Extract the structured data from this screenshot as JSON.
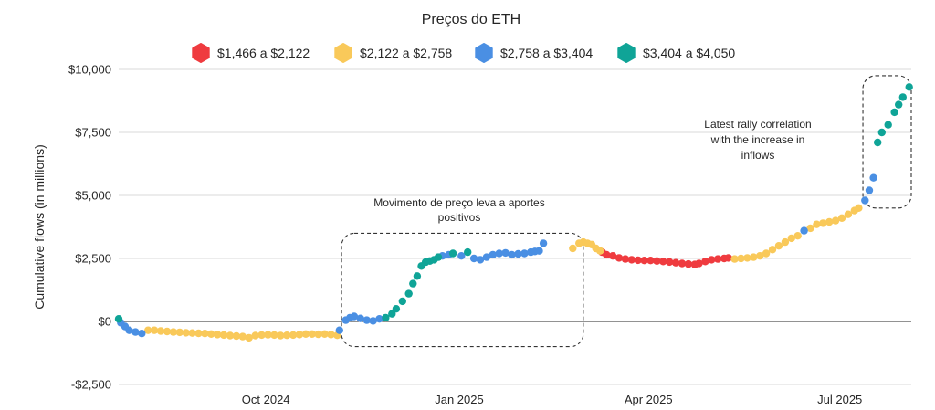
{
  "chart_data": {
    "type": "scatter",
    "title": "Preços do ETH",
    "ylabel": "Cumulative flows (in millions)",
    "xlabel": "",
    "ylim": [
      -2500,
      10000
    ],
    "y_ticks": [
      -2500,
      0,
      2500,
      5000,
      7500,
      10000
    ],
    "y_tick_labels": [
      "-$2,500",
      "$0",
      "$2,500",
      "$5,000",
      "$7,500",
      "$10,000"
    ],
    "x_tick_labels": [
      "Oct 2024",
      "Jan 2025",
      "Apr 2025",
      "Jul 2025"
    ],
    "x_ticks": [
      "2024-10-01",
      "2025-01-01",
      "2025-04-01",
      "2025-07-01"
    ],
    "x_range": [
      "2024-07-23",
      "2025-08-04"
    ],
    "grid": "horizontal",
    "legend_position": "top-center",
    "legend": [
      {
        "label": "$1,466 a $2,122",
        "color": "#ef3b3f"
      },
      {
        "label": "$2,122 a $2,758",
        "color": "#f9c95a"
      },
      {
        "label": "$2,758 a $3,404",
        "color": "#4a8fe3"
      },
      {
        "label": "$3,404 a $4,050",
        "color": "#0fa497"
      }
    ],
    "series": [
      {
        "name": "$1,466 a $2,122",
        "color": "#ef3b3f",
        "points": [
          [
            "2025-03-10",
            2750
          ],
          [
            "2025-03-12",
            2650
          ],
          [
            "2025-03-15",
            2600
          ],
          [
            "2025-03-18",
            2520
          ],
          [
            "2025-03-21",
            2480
          ],
          [
            "2025-03-24",
            2450
          ],
          [
            "2025-03-27",
            2430
          ],
          [
            "2025-03-30",
            2420
          ],
          [
            "2025-04-02",
            2420
          ],
          [
            "2025-04-05",
            2400
          ],
          [
            "2025-04-08",
            2380
          ],
          [
            "2025-04-11",
            2360
          ],
          [
            "2025-04-14",
            2330
          ],
          [
            "2025-04-17",
            2300
          ],
          [
            "2025-04-20",
            2280
          ],
          [
            "2025-04-23",
            2260
          ],
          [
            "2025-04-25",
            2300
          ],
          [
            "2025-04-28",
            2380
          ],
          [
            "2025-05-01",
            2450
          ],
          [
            "2025-05-04",
            2480
          ],
          [
            "2025-05-07",
            2500
          ],
          [
            "2025-05-09",
            2520
          ]
        ]
      },
      {
        "name": "$2,122 a $2,758",
        "color": "#f9c95a",
        "points": [
          [
            "2024-08-06",
            -350
          ],
          [
            "2024-08-09",
            -350
          ],
          [
            "2024-08-12",
            -380
          ],
          [
            "2024-08-15",
            -400
          ],
          [
            "2024-08-18",
            -420
          ],
          [
            "2024-08-21",
            -430
          ],
          [
            "2024-08-24",
            -450
          ],
          [
            "2024-08-27",
            -460
          ],
          [
            "2024-08-30",
            -470
          ],
          [
            "2024-09-02",
            -480
          ],
          [
            "2024-09-05",
            -500
          ],
          [
            "2024-09-08",
            -520
          ],
          [
            "2024-09-11",
            -540
          ],
          [
            "2024-09-14",
            -560
          ],
          [
            "2024-09-17",
            -580
          ],
          [
            "2024-09-20",
            -600
          ],
          [
            "2024-09-23",
            -650
          ],
          [
            "2024-09-26",
            -560
          ],
          [
            "2024-09-29",
            -540
          ],
          [
            "2024-10-02",
            -530
          ],
          [
            "2024-10-05",
            -540
          ],
          [
            "2024-10-08",
            -560
          ],
          [
            "2024-10-11",
            -550
          ],
          [
            "2024-10-14",
            -540
          ],
          [
            "2024-10-17",
            -520
          ],
          [
            "2024-10-20",
            -500
          ],
          [
            "2024-10-23",
            -500
          ],
          [
            "2024-10-26",
            -510
          ],
          [
            "2024-10-29",
            -500
          ],
          [
            "2024-11-01",
            -520
          ],
          [
            "2024-11-04",
            -550
          ],
          [
            "2025-02-24",
            2900
          ],
          [
            "2025-02-27",
            3100
          ],
          [
            "2025-03-01",
            3150
          ],
          [
            "2025-03-03",
            3100
          ],
          [
            "2025-03-05",
            3050
          ],
          [
            "2025-03-07",
            2900
          ],
          [
            "2025-03-09",
            2800
          ],
          [
            "2025-05-12",
            2480
          ],
          [
            "2025-05-15",
            2500
          ],
          [
            "2025-05-18",
            2520
          ],
          [
            "2025-05-21",
            2550
          ],
          [
            "2025-05-24",
            2600
          ],
          [
            "2025-05-27",
            2700
          ],
          [
            "2025-05-30",
            2850
          ],
          [
            "2025-06-02",
            3000
          ],
          [
            "2025-06-05",
            3150
          ],
          [
            "2025-06-08",
            3300
          ],
          [
            "2025-06-11",
            3400
          ],
          [
            "2025-06-17",
            3700
          ],
          [
            "2025-06-20",
            3850
          ],
          [
            "2025-06-23",
            3900
          ],
          [
            "2025-06-26",
            3950
          ],
          [
            "2025-06-29",
            4000
          ],
          [
            "2025-07-02",
            4100
          ],
          [
            "2025-07-05",
            4250
          ],
          [
            "2025-07-08",
            4400
          ],
          [
            "2025-07-10",
            4500
          ]
        ]
      },
      {
        "name": "$2,758 a $3,404",
        "color": "#4a8fe3",
        "points": [
          [
            "2024-07-24",
            -50
          ],
          [
            "2024-07-26",
            -200
          ],
          [
            "2024-07-28",
            -350
          ],
          [
            "2024-07-31",
            -420
          ],
          [
            "2024-08-03",
            -480
          ],
          [
            "2024-11-05",
            -350
          ],
          [
            "2024-11-08",
            50
          ],
          [
            "2024-11-10",
            150
          ],
          [
            "2024-11-12",
            200
          ],
          [
            "2024-11-15",
            120
          ],
          [
            "2024-11-18",
            50
          ],
          [
            "2024-11-21",
            20
          ],
          [
            "2024-11-24",
            100
          ],
          [
            "2024-12-24",
            2600
          ],
          [
            "2024-12-27",
            2650
          ],
          [
            "2025-01-02",
            2600
          ],
          [
            "2025-01-08",
            2500
          ],
          [
            "2025-01-11",
            2450
          ],
          [
            "2025-01-14",
            2550
          ],
          [
            "2025-01-17",
            2650
          ],
          [
            "2025-01-20",
            2700
          ],
          [
            "2025-01-23",
            2720
          ],
          [
            "2025-01-26",
            2650
          ],
          [
            "2025-01-29",
            2680
          ],
          [
            "2025-02-01",
            2700
          ],
          [
            "2025-02-04",
            2750
          ],
          [
            "2025-02-06",
            2780
          ],
          [
            "2025-02-08",
            2800
          ],
          [
            "2025-02-10",
            3100
          ],
          [
            "2025-06-14",
            3600
          ],
          [
            "2025-07-13",
            4800
          ],
          [
            "2025-07-15",
            5200
          ],
          [
            "2025-07-17",
            5700
          ]
        ]
      },
      {
        "name": "$3,404 a $4,050",
        "color": "#0fa497",
        "points": [
          [
            "2024-07-23",
            100
          ],
          [
            "2024-11-27",
            150
          ],
          [
            "2024-11-30",
            300
          ],
          [
            "2024-12-02",
            500
          ],
          [
            "2024-12-05",
            800
          ],
          [
            "2024-12-08",
            1100
          ],
          [
            "2024-12-10",
            1500
          ],
          [
            "2024-12-12",
            1800
          ],
          [
            "2024-12-14",
            2200
          ],
          [
            "2024-12-16",
            2350
          ],
          [
            "2024-12-18",
            2400
          ],
          [
            "2024-12-20",
            2450
          ],
          [
            "2024-12-22",
            2550
          ],
          [
            "2024-12-29",
            2700
          ],
          [
            "2025-01-05",
            2750
          ],
          [
            "2025-07-19",
            7100
          ],
          [
            "2025-07-21",
            7500
          ],
          [
            "2025-07-24",
            7800
          ],
          [
            "2025-07-27",
            8300
          ],
          [
            "2025-07-29",
            8600
          ],
          [
            "2025-07-31",
            8900
          ],
          [
            "2025-08-03",
            9300
          ]
        ]
      }
    ],
    "annotations": [
      {
        "lines": [
          "Movimento de preço leva a aportes",
          "positivos"
        ],
        "box": {
          "x": [
            "2024-11-06",
            "2025-03-01"
          ],
          "y": [
            -1000,
            3500
          ]
        }
      },
      {
        "lines": [
          "Latest rally correlation",
          "with the increase in",
          "inflows"
        ],
        "box": {
          "x": [
            "2025-07-12",
            "2025-08-04"
          ],
          "y": [
            4500,
            9750
          ]
        }
      }
    ]
  }
}
